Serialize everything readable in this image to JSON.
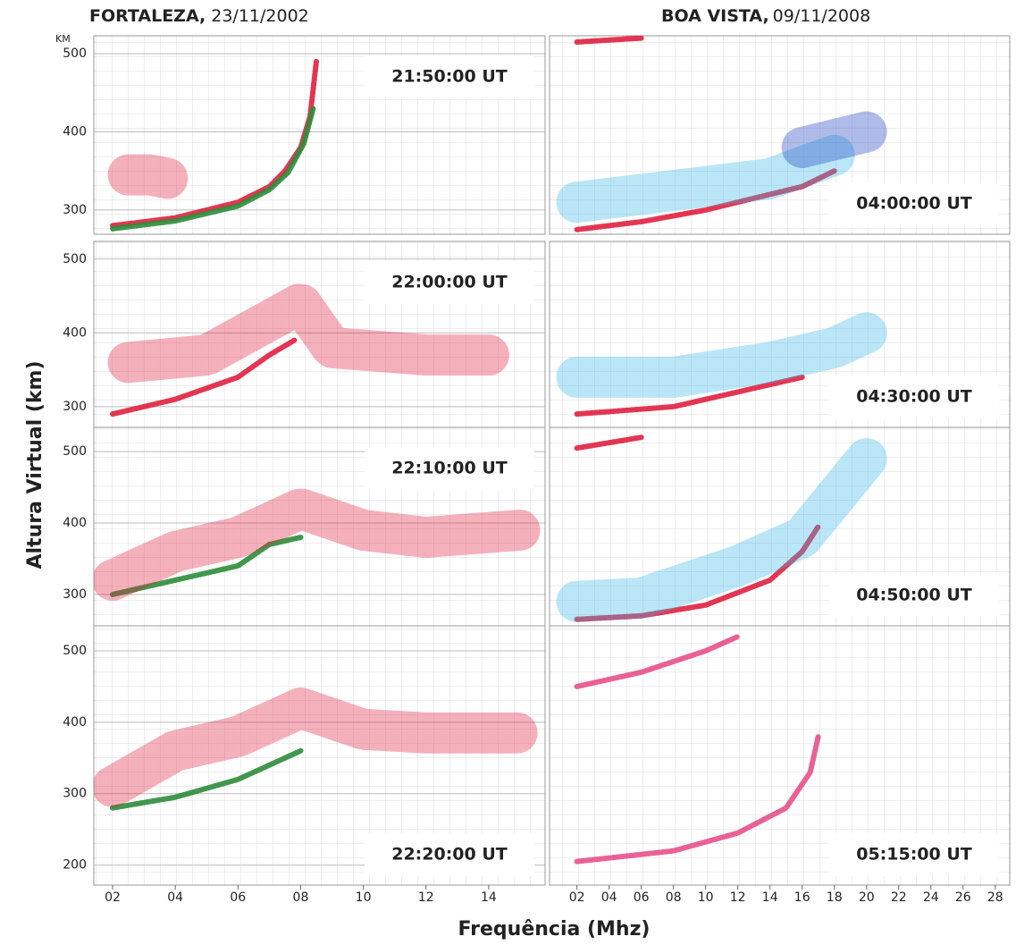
{
  "headers": [
    {
      "place": "FORTALEZA,",
      "date": "23/11/2002"
    },
    {
      "place": "BOA VISTA,",
      "date": "09/11/2008"
    }
  ],
  "y_unit": "KM",
  "y_axis_title": "Altura Virtual (km)",
  "x_axis_title": "Frequência (Mhz)",
  "chart_data": [
    {
      "type": "scatter",
      "title": "21:50:00 UT",
      "label_corner": "top-right",
      "xlim": [
        1.4,
        15.8
      ],
      "ylim": [
        269,
        523
      ],
      "yticks": [
        300,
        400,
        500
      ],
      "traces": [
        {
          "color": "#e0203f",
          "x": [
            2,
            4,
            6,
            7,
            7.5,
            8,
            8.3,
            8.5
          ],
          "y": [
            280,
            290,
            310,
            330,
            350,
            380,
            420,
            490
          ]
        },
        {
          "color": "#2c8c3a",
          "x": [
            2,
            4,
            6,
            7,
            7.6,
            8.1,
            8.4
          ],
          "y": [
            276,
            286,
            305,
            326,
            348,
            385,
            430
          ]
        },
        {
          "color": "#e0203f",
          "spread": true,
          "x": [
            2.5,
            3.2,
            3.8
          ],
          "y": [
            345,
            345,
            340
          ]
        }
      ]
    },
    {
      "type": "scatter",
      "title": "22:00:00 UT",
      "label_corner": "top-right",
      "xlim": [
        1.4,
        15.8
      ],
      "ylim": [
        272,
        524
      ],
      "yticks": [
        300,
        400,
        500
      ],
      "traces": [
        {
          "color": "#e0203f",
          "x": [
            2,
            4,
            6,
            7,
            7.8
          ],
          "y": [
            290,
            310,
            340,
            370,
            390
          ]
        },
        {
          "color": "#e0203f",
          "spread": true,
          "x": [
            2.5,
            5,
            8,
            9,
            12,
            14
          ],
          "y": [
            360,
            370,
            440,
            380,
            370,
            370
          ]
        }
      ]
    },
    {
      "type": "scatter",
      "title": "22:10:00 UT",
      "label_corner": "top-right",
      "xlim": [
        1.4,
        15.8
      ],
      "ylim": [
        256,
        534
      ],
      "yticks": [
        300,
        400,
        500
      ],
      "traces": [
        {
          "color": "#2c8c3a",
          "x": [
            2,
            4,
            6,
            7,
            8
          ],
          "y": [
            300,
            320,
            340,
            370,
            380
          ]
        },
        {
          "color": "#e0203f",
          "spread": true,
          "x": [
            2,
            4,
            6,
            8,
            10,
            12,
            15
          ],
          "y": [
            320,
            360,
            380,
            420,
            390,
            380,
            390
          ]
        }
      ]
    },
    {
      "type": "scatter",
      "title": "22:20:00 UT",
      "label_corner": "bottom-right",
      "xlim": [
        1.4,
        15.8
      ],
      "ylim": [
        172,
        535
      ],
      "yticks": [
        200,
        300,
        400,
        500
      ],
      "xticks": [
        {
          "value": 2,
          "label": "02"
        },
        {
          "value": 4,
          "label": "04"
        },
        {
          "value": 6,
          "label": "06"
        },
        {
          "value": 8,
          "label": "08"
        },
        10,
        12,
        14
      ],
      "traces": [
        {
          "color": "#2c8c3a",
          "x": [
            2,
            4,
            6,
            8
          ],
          "y": [
            280,
            295,
            320,
            360
          ]
        },
        {
          "color": "#e0203f",
          "spread": true,
          "x": [
            2,
            4,
            6,
            8,
            10,
            12,
            15
          ],
          "y": [
            310,
            360,
            380,
            420,
            390,
            385,
            385
          ]
        }
      ]
    },
    {
      "type": "scatter",
      "title": "04:00:00 UT",
      "label_corner": "bottom-right",
      "xlim": [
        0.3,
        28.9
      ],
      "ylim": [
        269,
        523
      ],
      "traces": [
        {
          "color": "#e0203f",
          "x": [
            2,
            6,
            10,
            14,
            16,
            18
          ],
          "y": [
            275,
            285,
            300,
            320,
            330,
            350
          ]
        },
        {
          "color": "#38b8e8",
          "spread": true,
          "x": [
            2,
            6,
            10,
            14,
            18
          ],
          "y": [
            310,
            320,
            330,
            340,
            370
          ]
        },
        {
          "color": "#1a3fc0",
          "spread": true,
          "x": [
            16,
            20
          ],
          "y": [
            380,
            400
          ]
        },
        {
          "color": "#e0203f",
          "x": [
            2,
            6
          ],
          "y": [
            515,
            520
          ]
        }
      ]
    },
    {
      "type": "scatter",
      "title": "04:30:00 UT",
      "label_corner": "bottom-right",
      "xlim": [
        0.3,
        28.9
      ],
      "ylim": [
        272,
        524
      ],
      "traces": [
        {
          "color": "#e0203f",
          "x": [
            2,
            8,
            12,
            16
          ],
          "y": [
            290,
            300,
            320,
            340
          ]
        },
        {
          "color": "#38b8e8",
          "spread": true,
          "x": [
            2,
            8,
            14,
            18,
            20
          ],
          "y": [
            340,
            340,
            360,
            380,
            400
          ]
        }
      ]
    },
    {
      "type": "scatter",
      "title": "04:50:00 UT",
      "label_corner": "bottom-right",
      "xlim": [
        0.3,
        28.9
      ],
      "ylim": [
        256,
        534
      ],
      "traces": [
        {
          "color": "#e0203f",
          "x": [
            2,
            6,
            10,
            14,
            16,
            17
          ],
          "y": [
            265,
            270,
            285,
            320,
            360,
            395
          ]
        },
        {
          "color": "#38b8e8",
          "spread": true,
          "x": [
            2,
            6,
            12,
            16,
            20
          ],
          "y": [
            290,
            295,
            340,
            380,
            490
          ]
        },
        {
          "color": "#e0203f",
          "x": [
            2,
            6
          ],
          "y": [
            505,
            520
          ]
        }
      ]
    },
    {
      "type": "scatter",
      "title": "05:15:00 UT",
      "label_corner": "bottom-right",
      "xlim": [
        0.3,
        28.9
      ],
      "ylim": [
        172,
        535
      ],
      "xticks": [
        {
          "value": 2,
          "label": "02"
        },
        {
          "value": 4,
          "label": "04"
        },
        {
          "value": 6,
          "label": "06"
        },
        {
          "value": 8,
          "label": "08"
        },
        10,
        12,
        14,
        16,
        18,
        20,
        22,
        24,
        26,
        28
      ],
      "traces": [
        {
          "color": "#e8508a",
          "x": [
            2,
            8,
            12,
            15,
            16.5,
            17
          ],
          "y": [
            205,
            220,
            245,
            280,
            330,
            380
          ]
        },
        {
          "color": "#e8508a",
          "x": [
            2,
            6,
            10,
            12
          ],
          "y": [
            450,
            470,
            500,
            520
          ]
        }
      ]
    }
  ]
}
